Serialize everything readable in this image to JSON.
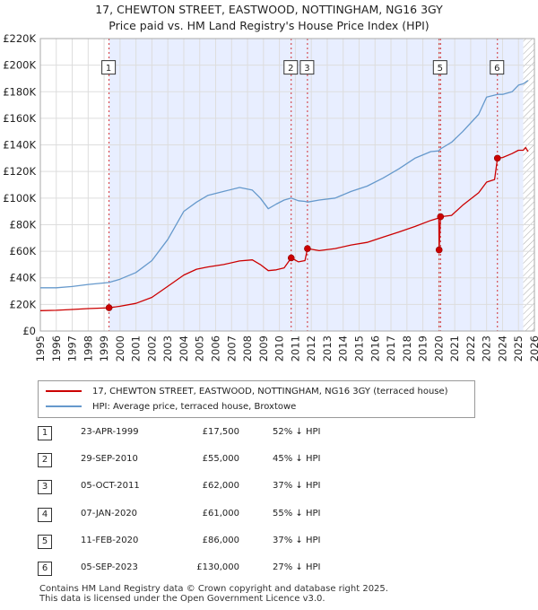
{
  "title_line1": "17, CHEWTON STREET, EASTWOOD, NOTTINGHAM, NG16 3GY",
  "title_line2": "Price paid vs. HM Land Registry's House Price Index (HPI)",
  "colors": {
    "red": "#cc0000",
    "blue": "#6699cc",
    "shade": "#e8eeff",
    "grid": "#dddddd"
  },
  "chart_data": {
    "type": "line",
    "xlim": [
      1995,
      2026
    ],
    "ylim": [
      0,
      220000
    ],
    "y_ticks": [
      0,
      20000,
      40000,
      60000,
      80000,
      100000,
      120000,
      140000,
      160000,
      180000,
      200000,
      220000
    ],
    "y_tick_labels": [
      "£0",
      "£20K",
      "£40K",
      "£60K",
      "£80K",
      "£100K",
      "£120K",
      "£140K",
      "£160K",
      "£180K",
      "£200K",
      "£220K"
    ],
    "x_ticks": [
      1995,
      1996,
      1997,
      1998,
      1999,
      2000,
      2001,
      2002,
      2003,
      2004,
      2005,
      2006,
      2007,
      2008,
      2009,
      2010,
      2011,
      2012,
      2013,
      2014,
      2015,
      2016,
      2017,
      2018,
      2019,
      2020,
      2021,
      2022,
      2023,
      2024,
      2025,
      2026
    ],
    "shaded_region": [
      1999.31,
      2025.3
    ],
    "hatched_from": 2025.3,
    "series": [
      {
        "name": "17, CHEWTON STREET, EASTWOOD, NOTTINGHAM, NG16 3GY (terraced house)",
        "color": "#cc0000",
        "points": [
          [
            1995.0,
            15300
          ],
          [
            1996.0,
            15600
          ],
          [
            1997.0,
            16200
          ],
          [
            1998.0,
            16900
          ],
          [
            1999.31,
            17500
          ],
          [
            2000.0,
            18600
          ],
          [
            2001.0,
            20800
          ],
          [
            2002.0,
            25300
          ],
          [
            2003.0,
            33700
          ],
          [
            2004.0,
            42100
          ],
          [
            2004.8,
            46500
          ],
          [
            2005.5,
            48200
          ],
          [
            2006.5,
            50000
          ],
          [
            2007.5,
            52700
          ],
          [
            2008.3,
            53500
          ],
          [
            2008.8,
            50000
          ],
          [
            2009.3,
            45400
          ],
          [
            2009.8,
            46000
          ],
          [
            2010.3,
            47500
          ],
          [
            2010.74,
            55000
          ],
          [
            2011.2,
            52000
          ],
          [
            2011.6,
            53000
          ],
          [
            2011.76,
            62000
          ],
          [
            2012.5,
            60500
          ],
          [
            2013.5,
            62000
          ],
          [
            2014.5,
            64700
          ],
          [
            2015.5,
            66700
          ],
          [
            2016.5,
            70600
          ],
          [
            2017.5,
            74500
          ],
          [
            2018.5,
            78600
          ],
          [
            2019.5,
            83200
          ],
          [
            2020.0,
            85000
          ],
          [
            2020.02,
            61000
          ],
          [
            2020.11,
            86000
          ],
          [
            2020.8,
            87000
          ],
          [
            2021.5,
            94600
          ],
          [
            2022.5,
            104000
          ],
          [
            2023.0,
            112000
          ],
          [
            2023.5,
            114000
          ],
          [
            2023.68,
            130000
          ],
          [
            2024.0,
            130500
          ],
          [
            2024.6,
            133500
          ],
          [
            2025.0,
            136000
          ],
          [
            2025.3,
            136000
          ],
          [
            2025.45,
            138000
          ],
          [
            2025.6,
            135000
          ]
        ]
      },
      {
        "name": "HPI: Average price, terraced house, Broxtowe",
        "color": "#6699cc",
        "points": [
          [
            1995.0,
            32500
          ],
          [
            1996.0,
            32500
          ],
          [
            1997.0,
            33500
          ],
          [
            1998.0,
            35000
          ],
          [
            1999.31,
            36500
          ],
          [
            2000.0,
            39000
          ],
          [
            2001.0,
            44000
          ],
          [
            2002.0,
            53000
          ],
          [
            2003.0,
            69000
          ],
          [
            2004.0,
            90000
          ],
          [
            2004.8,
            97000
          ],
          [
            2005.5,
            102000
          ],
          [
            2006.5,
            105000
          ],
          [
            2007.5,
            108000
          ],
          [
            2008.3,
            106000
          ],
          [
            2008.8,
            100000
          ],
          [
            2009.3,
            92000
          ],
          [
            2009.8,
            95500
          ],
          [
            2010.3,
            98500
          ],
          [
            2010.74,
            100000
          ],
          [
            2011.2,
            98000
          ],
          [
            2011.6,
            97500
          ],
          [
            2011.76,
            97000
          ],
          [
            2012.5,
            98500
          ],
          [
            2013.5,
            100000
          ],
          [
            2014.5,
            105000
          ],
          [
            2015.5,
            109000
          ],
          [
            2016.5,
            115000
          ],
          [
            2017.5,
            122000
          ],
          [
            2018.5,
            130000
          ],
          [
            2019.5,
            135000
          ],
          [
            2020.0,
            135500
          ],
          [
            2020.11,
            137000
          ],
          [
            2020.8,
            142000
          ],
          [
            2021.5,
            150000
          ],
          [
            2022.5,
            163000
          ],
          [
            2023.0,
            176000
          ],
          [
            2023.68,
            178000
          ],
          [
            2024.0,
            178000
          ],
          [
            2024.6,
            180000
          ],
          [
            2025.0,
            185000
          ],
          [
            2025.3,
            186000
          ],
          [
            2025.6,
            188500
          ]
        ]
      }
    ],
    "sales": [
      {
        "id": "1",
        "x": 1999.31,
        "y": 17500,
        "date": "23-APR-1999",
        "price": "£17,500",
        "hpi": "52% ↓ HPI",
        "box_y": 198000
      },
      {
        "id": "2",
        "x": 2010.74,
        "y": 55000,
        "date": "29-SEP-2010",
        "price": "£55,000",
        "hpi": "45% ↓ HPI",
        "box_y": 198000
      },
      {
        "id": "3",
        "x": 2011.76,
        "y": 62000,
        "date": "05-OCT-2011",
        "price": "£62,000",
        "hpi": "37% ↓ HPI",
        "box_y": 198000
      },
      {
        "id": "4",
        "x": 2020.02,
        "y": 61000,
        "date": "07-JAN-2020",
        "price": "£61,000",
        "hpi": "55% ↓ HPI",
        "box_y": null
      },
      {
        "id": "5",
        "x": 2020.11,
        "y": 86000,
        "date": "11-FEB-2020",
        "price": "£86,000",
        "hpi": "37% ↓ HPI",
        "box_y": 198000
      },
      {
        "id": "6",
        "x": 2023.68,
        "y": 130000,
        "date": "05-SEP-2023",
        "price": "£130,000",
        "hpi": "27% ↓ HPI",
        "box_y": 198000
      }
    ]
  },
  "legend": {
    "red_label": "17, CHEWTON STREET, EASTWOOD, NOTTINGHAM, NG16 3GY (terraced house)",
    "blue_label": "HPI: Average price, terraced house, Broxtowe"
  },
  "footer_line1": "Contains HM Land Registry data © Crown copyright and database right 2025.",
  "footer_line2": "This data is licensed under the Open Government Licence v3.0."
}
